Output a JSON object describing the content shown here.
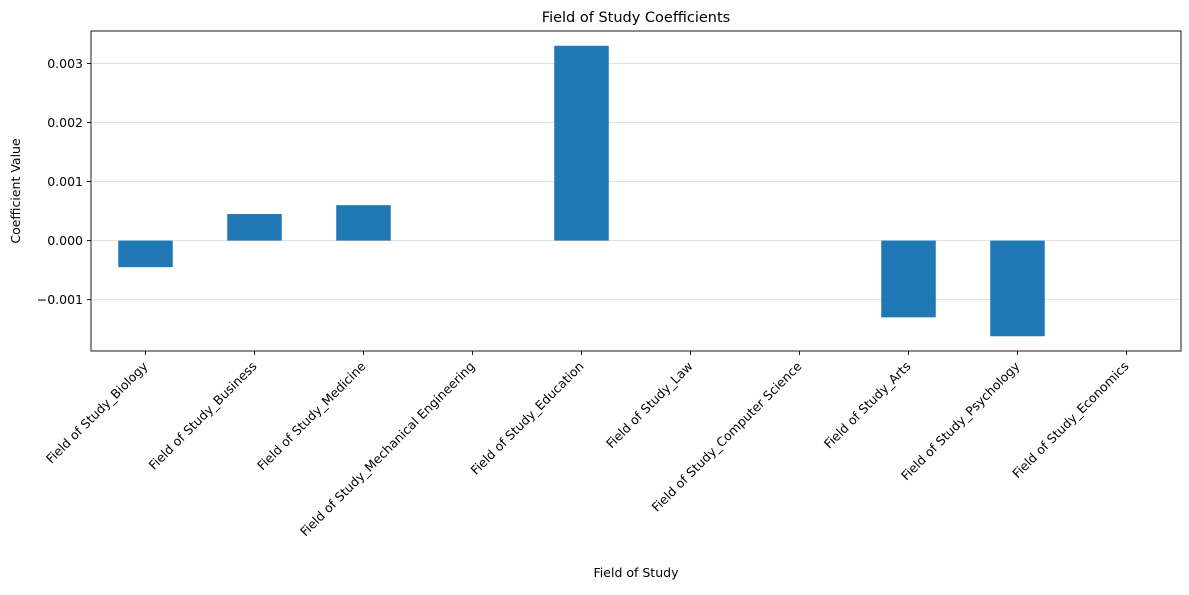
{
  "chart_data": {
    "type": "bar",
    "title": "Field of Study Coefficients",
    "xlabel": "Field of Study",
    "ylabel": "Coefficient Value",
    "categories": [
      "Field of Study_Biology",
      "Field of Study_Business",
      "Field of Study_Medicine",
      "Field of Study_Mechanical Engineering",
      "Field of Study_Education",
      "Field of Study_Law",
      "Field of Study_Computer Science",
      "Field of Study_Arts",
      "Field of Study_Psychology",
      "Field of Study_Economics"
    ],
    "values": [
      -0.00045,
      0.00045,
      0.0006,
      0.0,
      0.0033,
      0.0,
      0.0,
      -0.0013,
      -0.00162,
      0.0
    ],
    "ylim": [
      -0.00187,
      0.00355
    ],
    "yticks": [
      -0.001,
      0.0,
      0.001,
      0.002,
      0.003
    ],
    "ytick_labels": [
      "−0.001",
      "0.000",
      "0.001",
      "0.002",
      "0.003"
    ],
    "grid": "horizontal",
    "legend": "none",
    "bar_color": "#1f77b4",
    "grid_color": "#dddddd"
  }
}
